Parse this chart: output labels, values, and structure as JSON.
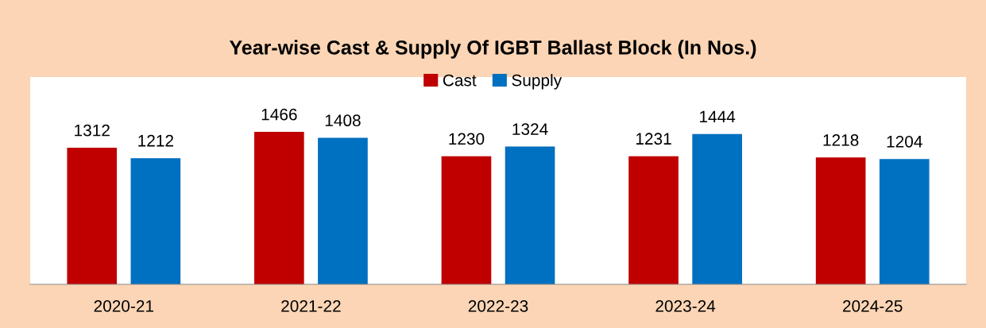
{
  "chart_data": {
    "type": "bar",
    "title": "Year-wise Cast & Supply Of IGBT Ballast Block (In Nos.)",
    "categories": [
      "2020-21",
      "2021-22",
      "2022-23",
      "2023-24",
      "2024-25"
    ],
    "series": [
      {
        "name": "Cast",
        "color": "#c00000",
        "values": [
          1312,
          1466,
          1230,
          1231,
          1218
        ]
      },
      {
        "name": "Supply",
        "color": "#0070c0",
        "values": [
          1212,
          1408,
          1324,
          1444,
          1204
        ]
      }
    ],
    "ylim": [
      0,
      2000
    ],
    "data_labels": true,
    "legend": "top",
    "grid": false
  }
}
